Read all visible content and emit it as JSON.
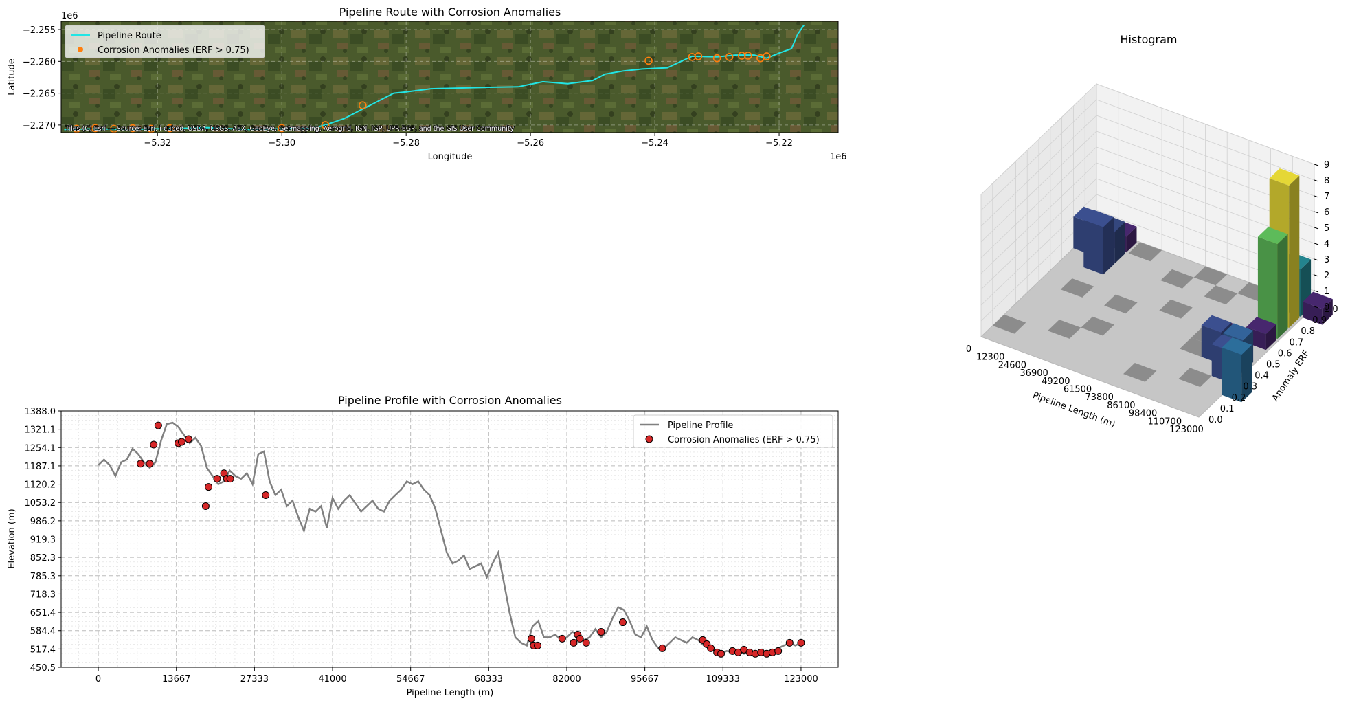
{
  "chart_data": [
    {
      "type": "line",
      "title": "Pipeline Route with Corrosion Anomalies",
      "xlabel": "Longitude",
      "ylabel": "Latitude",
      "x_offset_label": "1e6",
      "y_offset_label": "1e6",
      "xlim": [
        -5.3355,
        -5.2105
      ],
      "ylim": [
        -2.2712,
        -2.2537
      ],
      "x_ticks": [
        -5.32,
        -5.3,
        -5.28,
        -5.26,
        -5.24,
        -5.22
      ],
      "x_tick_labels": [
        "−5.32",
        "−5.30",
        "−5.28",
        "−5.26",
        "−5.24",
        "−5.22"
      ],
      "y_ticks": [
        -2.255,
        -2.26,
        -2.265,
        -2.27
      ],
      "y_tick_labels": [
        "−2.255",
        "−2.260",
        "−2.265",
        "−2.270"
      ],
      "attribution": "Tiles (C) Esri — Source: Esri, i-cubed, USDA, USGS, AEX, GeoEye, Getmapping, Aerogrid, IGN, IGP, UPR-EGP, and the GIS User Community",
      "legend": [
        "Pipeline Route",
        "Corrosion Anomalies (ERF > 0.75)"
      ],
      "legend_position": "upper-left",
      "grid": true,
      "colors": {
        "route": "#22e5e5",
        "anomaly": "#ff7f0e"
      },
      "route_x": [
        -5.335,
        -5.33,
        -5.325,
        -5.32,
        -5.315,
        -5.312,
        -5.308,
        -5.305,
        -5.3,
        -5.295,
        -5.293,
        -5.29,
        -5.287,
        -5.285,
        -5.282,
        -5.28,
        -5.276,
        -5.272,
        -5.268,
        -5.262,
        -5.258,
        -5.254,
        -5.25,
        -5.248,
        -5.245,
        -5.242,
        -5.238,
        -5.234,
        -5.23,
        -5.227,
        -5.224,
        -5.222,
        -5.22,
        -5.218,
        -5.217,
        -5.216
      ],
      "route_y": [
        -2.2707,
        -2.2706,
        -2.2707,
        -2.2706,
        -2.2705,
        -2.2704,
        -2.2706,
        -2.2707,
        -2.2706,
        -2.2705,
        -2.27,
        -2.269,
        -2.2675,
        -2.2665,
        -2.265,
        -2.2648,
        -2.2643,
        -2.2642,
        -2.2641,
        -2.264,
        -2.2632,
        -2.2635,
        -2.263,
        -2.262,
        -2.2615,
        -2.2612,
        -2.261,
        -2.2592,
        -2.2593,
        -2.259,
        -2.259,
        -2.2595,
        -2.2587,
        -2.258,
        -2.2557,
        -2.2543
      ],
      "anomaly_x": [
        -5.333,
        -5.33,
        -5.327,
        -5.324,
        -5.321,
        -5.318,
        -5.3,
        -5.293,
        -5.287,
        -5.241,
        -5.234,
        -5.233,
        -5.23,
        -5.228,
        -5.226,
        -5.225,
        -5.223,
        -5.222
      ],
      "anomaly_y": [
        -2.2706,
        -2.2705,
        -2.2706,
        -2.2705,
        -2.2706,
        -2.2705,
        -2.2705,
        -2.27,
        -2.2669,
        -2.2599,
        -2.2593,
        -2.2592,
        -2.2595,
        -2.2593,
        -2.2591,
        -2.2591,
        -2.2595,
        -2.2592
      ]
    },
    {
      "type": "line",
      "title": "Pipeline Profile with Corrosion Anomalies",
      "xlabel": "Pipeline Length (m)",
      "ylabel": "Elevation (m)",
      "xlim": [
        -6500,
        129500
      ],
      "ylim": [
        450.5,
        1388.0
      ],
      "x_ticks": [
        0,
        13667,
        27333,
        41000,
        54667,
        68333,
        82000,
        95667,
        109333,
        123000
      ],
      "y_ticks": [
        450.5,
        517.4,
        584.4,
        651.4,
        718.3,
        785.3,
        852.3,
        919.3,
        986.2,
        1053.2,
        1120.2,
        1187.1,
        1254.1,
        1321.1,
        1388.0
      ],
      "y_tick_labels": [
        "450.5",
        "517.4",
        "584.4",
        "651.4",
        "718.3",
        "785.3",
        "852.3",
        "919.3",
        "986.2",
        "1053.2",
        "1120.2",
        "1187.1",
        "1254.1",
        "1321.1",
        "1388.0"
      ],
      "legend": [
        "Pipeline Profile",
        "Corrosion Anomalies (ERF > 0.75)"
      ],
      "legend_position": "upper-right",
      "grid": true,
      "colors": {
        "profile": "#808080",
        "anomaly": "#d62728"
      },
      "profile_x": [
        0,
        1000,
        2000,
        3000,
        4000,
        5000,
        6000,
        7000,
        8000,
        9000,
        10000,
        11000,
        12000,
        13000,
        14000,
        15000,
        16000,
        17000,
        18000,
        19000,
        20000,
        21000,
        22000,
        23000,
        24000,
        25000,
        26000,
        27000,
        28000,
        29000,
        30000,
        31000,
        32000,
        33000,
        34000,
        35000,
        36000,
        37000,
        38000,
        39000,
        40000,
        41000,
        42000,
        43000,
        44000,
        45000,
        46000,
        47000,
        48000,
        49000,
        50000,
        51000,
        52000,
        53000,
        54000,
        55000,
        56000,
        57000,
        58000,
        59000,
        60000,
        61000,
        62000,
        63000,
        64000,
        65000,
        66000,
        67000,
        68000,
        69000,
        70000,
        71000,
        72000,
        73000,
        74000,
        75000,
        76000,
        77000,
        78000,
        79000,
        80000,
        81000,
        82000,
        83000,
        84000,
        85000,
        86000,
        87000,
        88000,
        89000,
        90000,
        91000,
        92000,
        93000,
        94000,
        95000,
        96000,
        97000,
        98000,
        99000,
        100000,
        101000,
        102000,
        103000,
        104000,
        105000,
        106000,
        107000,
        108000,
        109000,
        110000,
        111000,
        112000,
        113000,
        114000,
        115000,
        116000,
        117000,
        118000,
        119000,
        120000,
        121000,
        122000,
        123000
      ],
      "profile_y": [
        1190,
        1210,
        1190,
        1150,
        1200,
        1210,
        1250,
        1230,
        1200,
        1180,
        1200,
        1280,
        1340,
        1345,
        1330,
        1300,
        1270,
        1290,
        1260,
        1180,
        1150,
        1120,
        1130,
        1170,
        1150,
        1140,
        1160,
        1120,
        1230,
        1240,
        1130,
        1080,
        1100,
        1040,
        1060,
        1000,
        950,
        1030,
        1020,
        1040,
        960,
        1070,
        1030,
        1060,
        1080,
        1050,
        1020,
        1040,
        1060,
        1030,
        1020,
        1060,
        1080,
        1100,
        1130,
        1120,
        1130,
        1100,
        1080,
        1030,
        950,
        870,
        830,
        840,
        860,
        810,
        820,
        830,
        780,
        830,
        870,
        760,
        650,
        560,
        540,
        530,
        600,
        620,
        560,
        560,
        570,
        550,
        560,
        580,
        570,
        550,
        560,
        590,
        560,
        580,
        630,
        670,
        660,
        620,
        570,
        560,
        600,
        550,
        520,
        520,
        540,
        560,
        550,
        540,
        560,
        550,
        530,
        520,
        510,
        500,
        510,
        505,
        510,
        500,
        505,
        500,
        505,
        500,
        510,
        520,
        530,
        540,
        530,
        540
      ],
      "anomaly_x": [
        7400,
        9000,
        9700,
        10500,
        14000,
        14600,
        15800,
        18800,
        19300,
        20800,
        22000,
        22500,
        23100,
        29300,
        75800,
        76200,
        76900,
        81200,
        83200,
        83900,
        84300,
        85400,
        88000,
        91800,
        98700,
        105800,
        106500,
        107200,
        108300,
        109000,
        111000,
        112000,
        113000,
        114000,
        115000,
        116000,
        117000,
        118000,
        119000,
        121000,
        123000
      ],
      "anomaly_y": [
        1195,
        1195,
        1265,
        1335,
        1270,
        1275,
        1285,
        1040,
        1110,
        1140,
        1160,
        1140,
        1140,
        1080,
        555,
        530,
        530,
        555,
        540,
        570,
        555,
        540,
        580,
        615,
        520,
        550,
        535,
        520,
        505,
        500,
        510,
        505,
        515,
        505,
        500,
        505,
        500,
        505,
        510,
        540,
        540
      ]
    },
    {
      "type": "bar3d",
      "title": "Histogram",
      "xlabel": "Pipeline Length (m)",
      "ylabel": "Anomaly ERF",
      "x_tick_labels": [
        "0",
        "12300",
        "24600",
        "36900",
        "49200",
        "61500",
        "73800",
        "86100",
        "98400",
        "110700",
        "123000"
      ],
      "y_tick_labels": [
        "0.0",
        "0.1",
        "0.2",
        "0.3",
        "0.4",
        "0.5",
        "0.6",
        "0.7",
        "0.8",
        "0.9",
        "1.0"
      ],
      "z_tick_labels": [
        "0",
        "1",
        "2",
        "3",
        "4",
        "5",
        "6",
        "7",
        "8",
        "9"
      ],
      "zlim": [
        0,
        9
      ],
      "bars": [
        {
          "xbin": 0,
          "ybin": 9,
          "value": 2,
          "color": "#3b4f8f"
        },
        {
          "xbin": 1,
          "ybin": 8,
          "value": 3,
          "color": "#3b4f8f"
        },
        {
          "xbin": 1,
          "ybin": 9,
          "value": 2,
          "color": "#34477e"
        },
        {
          "xbin": 1,
          "ybin": 10,
          "value": 1,
          "color": "#47276e"
        },
        {
          "xbin": 8,
          "ybin": 5,
          "value": 2,
          "color": "#3b4f8f"
        },
        {
          "xbin": 8,
          "ybin": 6,
          "value": 1,
          "color": "#47276e"
        },
        {
          "xbin": 9,
          "ybin": 4,
          "value": 2,
          "color": "#3b4f8f"
        },
        {
          "xbin": 9,
          "ybin": 5,
          "value": 2,
          "color": "#33639a"
        },
        {
          "xbin": 9,
          "ybin": 7,
          "value": 1,
          "color": "#47276e"
        },
        {
          "xbin": 9,
          "ybin": 8,
          "value": 6,
          "color": "#5dbb5a"
        },
        {
          "xbin": 9,
          "ybin": 9,
          "value": 9,
          "color": "#e5d736"
        },
        {
          "xbin": 9,
          "ybin": 10,
          "value": 3,
          "color": "#23848e"
        },
        {
          "xbin": 10,
          "ybin": 3,
          "value": 3,
          "color": "#2c6e9b"
        },
        {
          "xbin": 10,
          "ybin": 10,
          "value": 1,
          "color": "#47276e"
        }
      ],
      "empty_cells": [
        [
          2,
          9
        ],
        [
          5,
          9
        ],
        [
          4,
          8
        ],
        [
          7,
          9
        ],
        [
          6,
          8
        ],
        [
          1,
          5
        ],
        [
          3,
          5
        ],
        [
          5,
          6
        ],
        [
          3,
          3
        ],
        [
          7,
          5
        ],
        [
          7,
          4
        ],
        [
          8,
          2
        ],
        [
          6,
          1
        ],
        [
          2,
          2
        ],
        [
          0,
          1
        ]
      ]
    }
  ]
}
